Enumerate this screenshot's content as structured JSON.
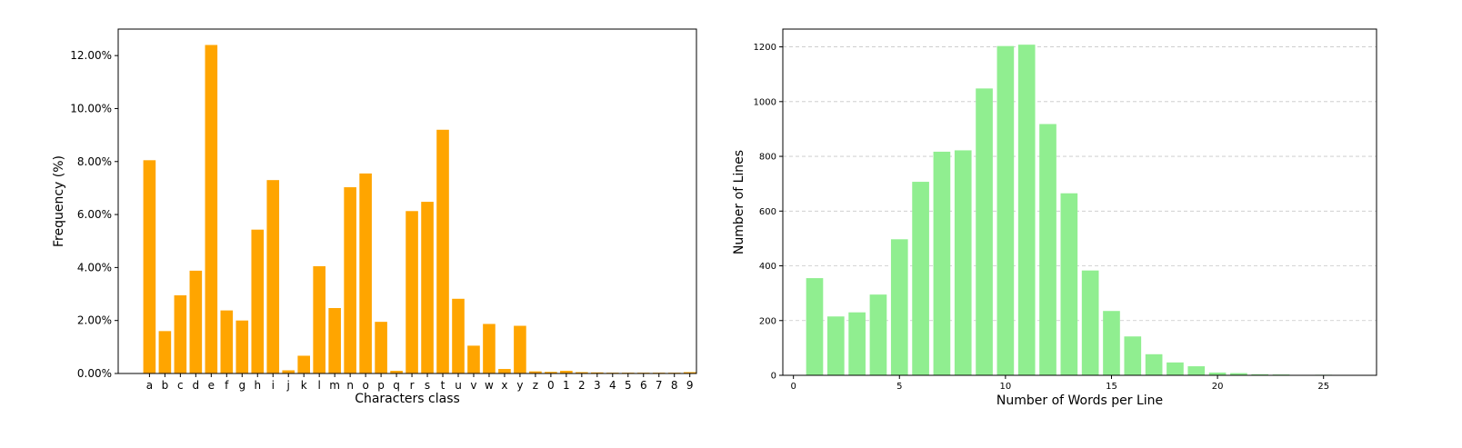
{
  "chart_data": [
    {
      "type": "bar",
      "xlabel": "Characters class",
      "ylabel": "Frequency (%)",
      "ylim": [
        0,
        13.0
      ],
      "yticks": [
        "0.00%",
        "2.00%",
        "4.00%",
        "6.00%",
        "8.00%",
        "10.00%",
        "12.00%"
      ],
      "ytick_values": [
        0,
        2,
        4,
        6,
        8,
        10,
        12
      ],
      "grid": false,
      "bar_color": "#FFA500",
      "categories": [
        "a",
        "b",
        "c",
        "d",
        "e",
        "f",
        "g",
        "h",
        "i",
        "j",
        "k",
        "l",
        "m",
        "n",
        "o",
        "p",
        "q",
        "r",
        "s",
        "t",
        "u",
        "v",
        "w",
        "x",
        "y",
        "z",
        "0",
        "1",
        "2",
        "3",
        "4",
        "5",
        "6",
        "7",
        "8",
        "9"
      ],
      "values": [
        8.05,
        1.6,
        2.95,
        3.88,
        12.4,
        2.38,
        2.0,
        5.43,
        7.3,
        0.12,
        0.67,
        4.05,
        2.47,
        7.03,
        7.55,
        1.95,
        0.1,
        6.13,
        6.48,
        9.2,
        2.82,
        1.05,
        1.87,
        0.17,
        1.8,
        0.08,
        0.06,
        0.1,
        0.05,
        0.04,
        0.03,
        0.03,
        0.03,
        0.03,
        0.03,
        0.05
      ]
    },
    {
      "type": "bar",
      "xlabel": "Number of Words per Line",
      "ylabel": "Number of Lines",
      "xlim": [
        -0.5,
        27.5
      ],
      "ylim": [
        0,
        1265
      ],
      "xticks": [
        "0",
        "5",
        "10",
        "15",
        "20",
        "25"
      ],
      "xtick_values": [
        0,
        5,
        10,
        15,
        20,
        25
      ],
      "yticks": [
        "0",
        "200",
        "400",
        "600",
        "800",
        "1000",
        "1200"
      ],
      "ytick_values": [
        0,
        200,
        400,
        600,
        800,
        1000,
        1200
      ],
      "grid": "horizontal dashed",
      "bar_color": "#90EE90",
      "x": [
        1,
        2,
        3,
        4,
        5,
        6,
        7,
        8,
        9,
        10,
        11,
        12,
        13,
        14,
        15,
        16,
        17,
        18,
        19,
        20,
        21,
        22,
        23,
        24,
        25,
        26
      ],
      "values": [
        355,
        215,
        230,
        295,
        497,
        707,
        817,
        822,
        1048,
        1203,
        1208,
        918,
        665,
        383,
        235,
        142,
        77,
        47,
        33,
        10,
        8,
        4,
        3,
        1,
        2,
        1
      ]
    }
  ]
}
